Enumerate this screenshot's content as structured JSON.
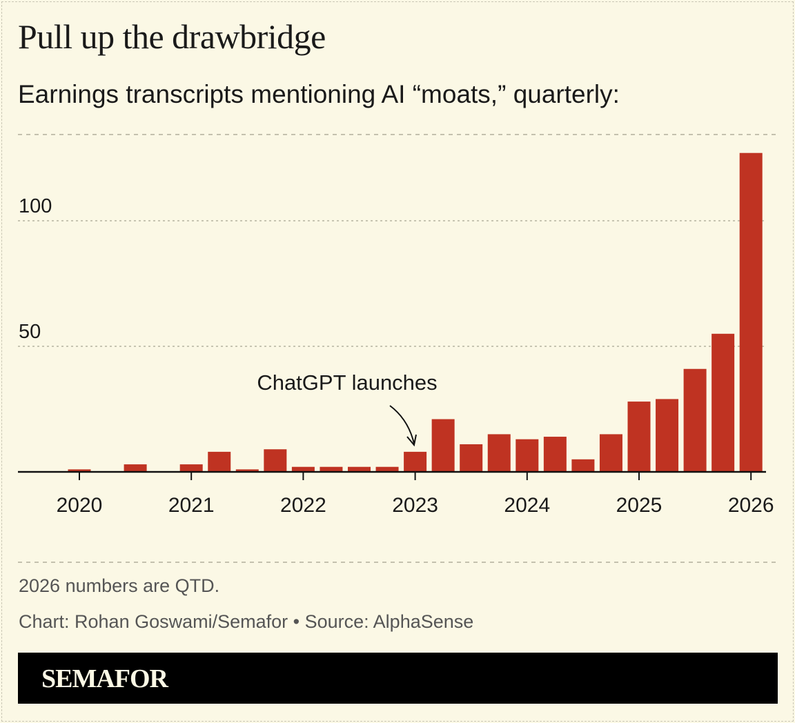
{
  "title": "Pull up the drawbridge",
  "subtitle": "Earnings transcripts mentioning AI “moats,” quarterly:",
  "note": "2026 numbers are QTD.",
  "credit": "Chart: Rohan Goswami/Semafor • Source: AlphaSense",
  "brand": "SEMAFOR",
  "colors": {
    "bar": "#bf3322",
    "background": "#fbf8e5"
  },
  "chart_data": {
    "type": "bar",
    "categories": [
      "2020 Q1",
      "2020 Q2",
      "2020 Q3",
      "2020 Q4",
      "2021 Q1",
      "2021 Q2",
      "2021 Q3",
      "2021 Q4",
      "2022 Q1",
      "2022 Q2",
      "2022 Q3",
      "2022 Q4",
      "2023 Q1",
      "2023 Q2",
      "2023 Q3",
      "2023 Q4",
      "2024 Q1",
      "2024 Q2",
      "2024 Q3",
      "2024 Q4",
      "2025 Q1",
      "2025 Q2",
      "2025 Q3",
      "2025 Q4",
      "2026 Q1"
    ],
    "values": [
      1,
      0,
      3,
      0,
      3,
      8,
      1,
      9,
      2,
      2,
      2,
      2,
      8,
      21,
      11,
      15,
      13,
      14,
      5,
      15,
      28,
      29,
      41,
      55,
      127
    ],
    "x_tick_labels": [
      "2020",
      "2021",
      "2022",
      "2023",
      "2024",
      "2025",
      "2026"
    ],
    "y_ticks": [
      50,
      100
    ],
    "y_tick_labels": [
      "50",
      "100"
    ],
    "ylim": [
      0,
      134
    ],
    "grid": true,
    "annotation": {
      "text": "ChatGPT launches",
      "category": "2023 Q1"
    }
  }
}
